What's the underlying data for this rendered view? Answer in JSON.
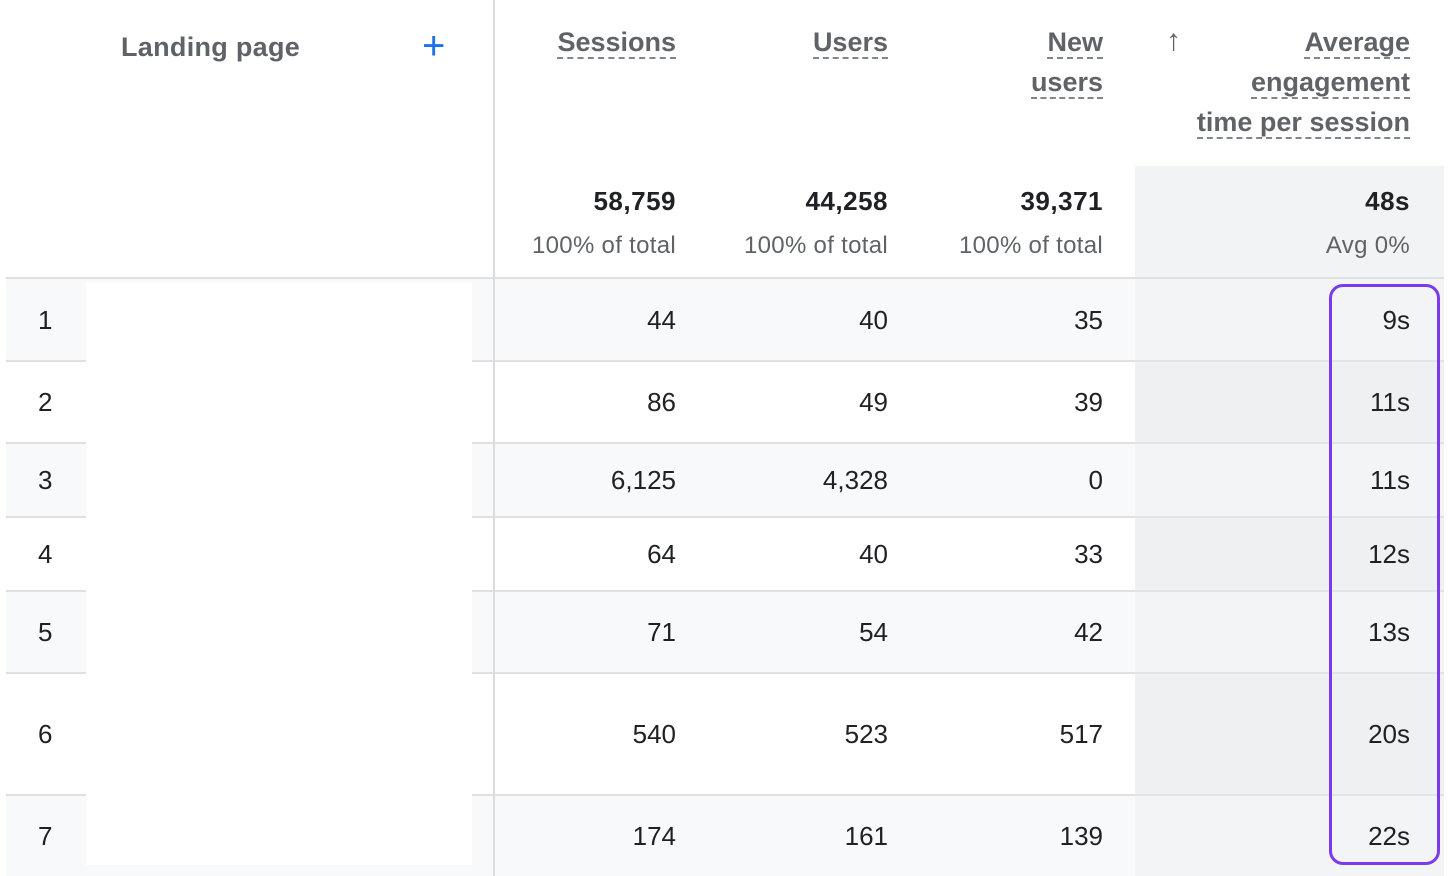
{
  "header": {
    "dimension_label": "Landing page",
    "add_icon": "plus-icon",
    "sort_icon": "arrow-up-icon",
    "columns": [
      {
        "lines": [
          "Sessions"
        ]
      },
      {
        "lines": [
          "Users"
        ]
      },
      {
        "lines": [
          "New",
          "users"
        ]
      },
      {
        "lines": [
          "Average",
          "engagement",
          "time per session"
        ]
      }
    ]
  },
  "totals": [
    {
      "value": "58,759",
      "sub": "100% of total"
    },
    {
      "value": "44,258",
      "sub": "100% of total"
    },
    {
      "value": "39,371",
      "sub": "100% of total"
    },
    {
      "value": "48s",
      "sub": "Avg 0%"
    }
  ],
  "rows": [
    {
      "index": "1",
      "sessions": "44",
      "users": "40",
      "new_users": "35",
      "avg_time": "9s"
    },
    {
      "index": "2",
      "sessions": "86",
      "users": "49",
      "new_users": "39",
      "avg_time": "11s"
    },
    {
      "index": "3",
      "sessions": "6,125",
      "users": "4,328",
      "new_users": "0",
      "avg_time": "11s"
    },
    {
      "index": "4",
      "sessions": "64",
      "users": "40",
      "new_users": "33",
      "avg_time": "12s"
    },
    {
      "index": "5",
      "sessions": "71",
      "users": "54",
      "new_users": "42",
      "avg_time": "13s"
    },
    {
      "index": "6",
      "sessions": "540",
      "users": "523",
      "new_users": "517",
      "avg_time": "20s"
    },
    {
      "index": "7",
      "sessions": "174",
      "users": "161",
      "new_users": "139",
      "avg_time": "22s"
    }
  ],
  "colors": {
    "accent": "#1a73e8",
    "annotation": "#7c3aed",
    "row_alt": "#f8f9fa",
    "sorted_column": "#f1f3f4"
  }
}
